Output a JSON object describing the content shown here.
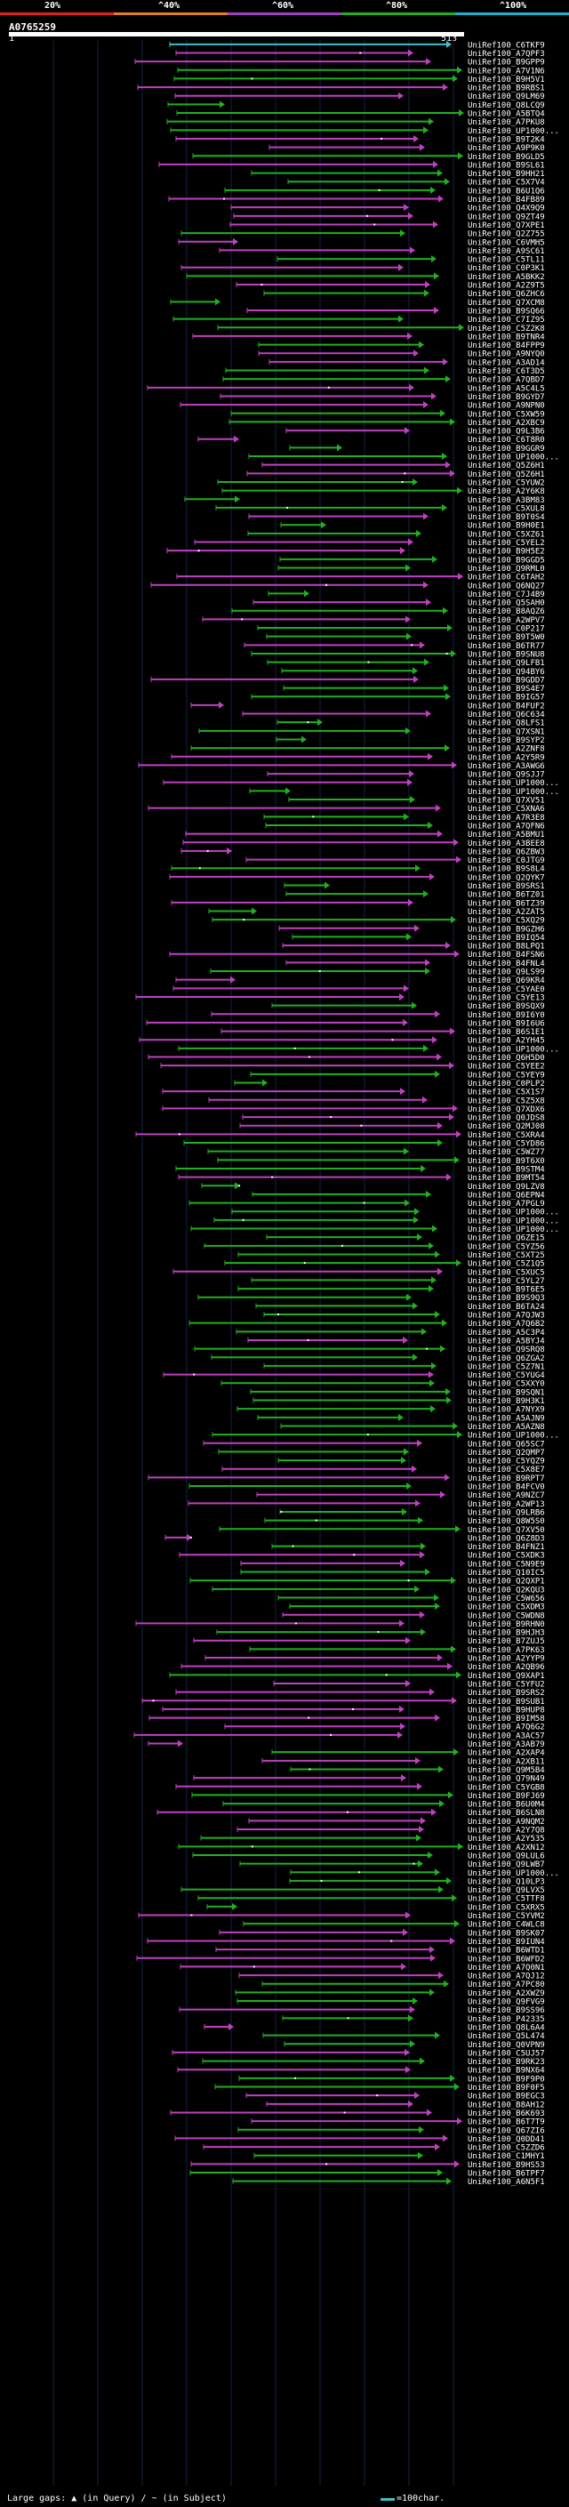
{
  "legend": {
    "labels": [
      "20%",
      "^40%",
      "^60%",
      "^80%",
      "^100%"
    ],
    "colors": [
      "#e02020",
      "#e08020",
      "#a040c0",
      "#20b020",
      "#20b0d0"
    ]
  },
  "query": {
    "id": "A0765259",
    "start": "1",
    "end": "513"
  },
  "hits": [
    "UniRef100_C6TKF9",
    "UniRef100_A7QPF3",
    "UniRef100_B9GPP9",
    "UniRef100_A7V1N6",
    "UniRef100_B9H5V1",
    "UniRef100_B9RBS1",
    "UniRef100_Q9LM69",
    "UniRef100_Q8LCQ9",
    "UniRef100_A5BTQ4",
    "UniRef100_A7PKU8",
    "UniRef100_UP1000...",
    "UniRef100_B9T2K4",
    "UniRef100_A9P9K0",
    "UniRef100_B9GLD5",
    "UniRef100_B9SL61",
    "UniRef100_B9HH21",
    "UniRef100_C5X7V4",
    "UniRef100_B6U1Q6",
    "UniRef100_B4FB89",
    "UniRef100_Q4X9Q9",
    "UniRef100_Q9ZT49",
    "UniRef100_Q7XPE1",
    "UniRef100_Q2Z755",
    "UniRef100_C6VMH5",
    "UniRef100_A9SC61",
    "UniRef100_C5TL11",
    "UniRef100_C0P3K1",
    "UniRef100_A5BKK2",
    "UniRef100_A2Z9T5",
    "UniRef100_Q6ZHC6",
    "UniRef100_Q7XCM8",
    "UniRef100_B9SQ66",
    "UniRef100_C7IZ95",
    "UniRef100_C5Z2K8",
    "UniRef100_B9TNR4",
    "UniRef100_B4FPP9",
    "UniRef100_A9NYQ0",
    "UniRef100_A3AD14",
    "UniRef100_C6T3D5",
    "UniRef100_A7QBD7",
    "UniRef100_A5C4L5",
    "UniRef100_B9GYD7",
    "UniRef100_A9NPN0",
    "UniRef100_C5XW59",
    "UniRef100_A2XBC9",
    "UniRef100_Q9L3B6",
    "UniRef100_C6T8R0",
    "UniRef100_B9GGR9",
    "UniRef100_UP1000...",
    "UniRef100_Q5Z6H1",
    "UniRef100_Q5Z6H1",
    "UniRef100_C5YUW2",
    "UniRef100_A2Y6K8",
    "UniRef100_A3BM83",
    "UniRef100_C5XUL8",
    "UniRef100_B9T0S4",
    "UniRef100_B9H0E1",
    "UniRef100_C5XZ61",
    "UniRef100_C5YEL2",
    "UniRef100_B9H5E2",
    "UniRef100_B9GGD5",
    "UniRef100_Q9RML0",
    "UniRef100_C6TAH2",
    "UniRef100_Q6NQ27",
    "UniRef100_C7J4B9",
    "UniRef100_Q5SAH0",
    "UniRef100_B8AQZ6",
    "UniRef100_A2WPV7",
    "UniRef100_C0P217",
    "UniRef100_B9T5W0",
    "UniRef100_B6TR77",
    "UniRef100_B9SNU8",
    "UniRef100_Q9LFB1",
    "UniRef100_Q94BY6",
    "UniRef100_B9GDD7",
    "UniRef100_B9S4E7",
    "UniRef100_B9IG57",
    "UniRef100_B4FUF2",
    "UniRef100_Q6C634",
    "UniRef100_Q8LFS1",
    "UniRef100_Q7XSN1",
    "UniRef100_B9SYP2",
    "UniRef100_A2ZNF8",
    "UniRef100_A2Y5R9",
    "UniRef100_A3AWG6",
    "UniRef100_Q9SJJ7",
    "UniRef100_UP1000...",
    "UniRef100_UP1000...",
    "UniRef100_Q7XV51",
    "UniRef100_C5XNA6",
    "UniRef100_A7R3E8",
    "UniRef100_A7QFN6",
    "UniRef100_A5BMU1",
    "UniRef100_A3BEE8",
    "UniRef100_Q6ZBW3",
    "UniRef100_C0JTG9",
    "UniRef100_B9S8L4",
    "UniRef100_Q2QYK7",
    "UniRef100_B9SRS1",
    "UniRef100_B6TZ01",
    "UniRef100_B6TZ39",
    "UniRef100_A2ZAT5",
    "UniRef100_C5XQ29",
    "UniRef100_B9GZH6",
    "UniRef100_B9IQ54",
    "UniRef100_B8LPQ1",
    "UniRef100_B4FSN6",
    "UniRef100_B4FNL4",
    "UniRef100_Q9LS99",
    "UniRef100_Q69KR4",
    "UniRef100_C5YAE0",
    "UniRef100_C5YE13",
    "UniRef100_B9SQX9",
    "UniRef100_B9I6Y0",
    "UniRef100_B9I6U6",
    "UniRef100_B6S1E1",
    "UniRef100_A2YH45",
    "UniRef100_UP1000...",
    "UniRef100_Q6H5D0",
    "UniRef100_C5YEE2",
    "UniRef100_C5YEY9",
    "UniRef100_C0PLP2",
    "UniRef100_C5X1S7",
    "UniRef100_C5Z5X8",
    "UniRef100_Q7XDX6",
    "UniRef100_Q0JDS8",
    "UniRef100_Q2MJ08",
    "UniRef100_C5XRA4",
    "UniRef100_C5YD86",
    "UniRef100_C5WZ77",
    "UniRef100_B9T6X0",
    "UniRef100_B9STM4",
    "UniRef100_B9MT54",
    "UniRef100_Q9LZV8",
    "UniRef100_Q6EPN4",
    "UniRef100_A7PGL9",
    "UniRef100_UP1000...",
    "UniRef100_UP1000...",
    "UniRef100_UP1000...",
    "UniRef100_Q6ZE15",
    "UniRef100_C5YZ56",
    "UniRef100_C5XT25",
    "UniRef100_C5Z1Q5",
    "UniRef100_C5XUC5",
    "UniRef100_C5YL27",
    "UniRef100_B9T6E5",
    "UniRef100_B9S9Q3",
    "UniRef100_B6TA24",
    "UniRef100_A7QJW3",
    "UniRef100_A7Q6B2",
    "UniRef100_A5C3P4",
    "UniRef100_A5BYJ4",
    "UniRef100_Q9SRQ8",
    "UniRef100_Q6ZGA2",
    "UniRef100_C5Z7N1",
    "UniRef100_C5YUG4",
    "UniRef100_C5XXY0",
    "UniRef100_B9SQN1",
    "UniRef100_B9H3K1",
    "UniRef100_A7NYX9",
    "UniRef100_A5AJN9",
    "UniRef100_A5AZN8",
    "UniRef100_UP1000...",
    "UniRef100_Q65SC7",
    "UniRef100_Q2QMP7",
    "UniRef100_C5YQZ9",
    "UniRef100_C5X8E7",
    "UniRef100_B9RPT7",
    "UniRef100_B4FCV0",
    "UniRef100_A9NZC7",
    "UniRef100_A2WP13",
    "UniRef100_Q9LRB6",
    "UniRef100_Q8W5S0",
    "UniRef100_Q7XV50",
    "UniRef100_Q6Z8D3",
    "UniRef100_B4FNZ1",
    "UniRef100_C5XDK3",
    "UniRef100_C5N9E9",
    "UniRef100_Q10IC5",
    "UniRef100_Q2QXP1",
    "UniRef100_Q2KQU3",
    "UniRef100_C5W656",
    "UniRef100_C5XDM3",
    "UniRef100_C5WDN8",
    "UniRef100_B9RHN0",
    "UniRef100_B9HJH3",
    "UniRef100_B7ZUJ5",
    "UniRef100_A7PK63",
    "UniRef100_A2YYP9",
    "UniRef100_A2QB96",
    "UniRef100_Q9XAP1",
    "UniRef100_C5YFU2",
    "UniRef100_B9SRS2",
    "UniRef100_B9SUB1",
    "UniRef100_B9HUP8",
    "UniRef100_B9IM58",
    "UniRef100_A7Q6G2",
    "UniRef100_A3AC57",
    "UniRef100_A3AB79",
    "UniRef100_A2XAP4",
    "UniRef100_A2XB11",
    "UniRef100_Q9M5B4",
    "UniRef100_Q79N49",
    "UniRef100_C5YGB8",
    "UniRef100_B9FJ69",
    "UniRef100_B6U0M4",
    "UniRef100_B6SLN8",
    "UniRef100_A9NQM2",
    "UniRef100_A2Y7Q8",
    "UniRef100_A2Y535",
    "UniRef100_A2XN12",
    "UniRef100_Q9LUL6",
    "UniRef100_Q9LWB7",
    "UniRef100_UP1000...",
    "UniRef100_Q10LP3",
    "UniRef100_Q9LVX5",
    "UniRef100_C5TTF8",
    "UniRef100_C5XRX5",
    "UniRef100_C5YVM2",
    "UniRef100_C4WLC8",
    "UniRef100_B9SK07",
    "UniRef100_B9IUN4",
    "UniRef100_B6WTD1",
    "UniRef100_B6WFD2",
    "UniRef100_A7Q0N1",
    "UniRef100_A7QJ12",
    "UniRef100_A7PC80",
    "UniRef100_A2XWZ9",
    "UniRef100_Q9FVG9",
    "UniRef100_B9SS96",
    "UniRef100_P42335",
    "UniRef100_Q8L6A4",
    "UniRef100_Q5L474",
    "UniRef100_Q0VPN9",
    "UniRef100_C5UJ57",
    "UniRef100_B9RK23",
    "UniRef100_B9NX64",
    "UniRef100_B9F9P0",
    "UniRef100_B9F0F5",
    "UniRef100_B9EGC3",
    "UniRef100_B8AH12",
    "UniRef100_B6K693",
    "UniRef100_B6T7T9",
    "UniRef100_Q67ZI6",
    "UniRef100_Q0DD41",
    "UniRef100_C5ZZD6",
    "UniRef100_C1MHY1",
    "UniRef100_B9HS53",
    "UniRef100_B6TPF7",
    "UniRef100_A6N5F1"
  ],
  "footer": {
    "left": "Large gaps: ▲ (in Query) / ~ (in Subject)",
    "right": "=100char."
  }
}
